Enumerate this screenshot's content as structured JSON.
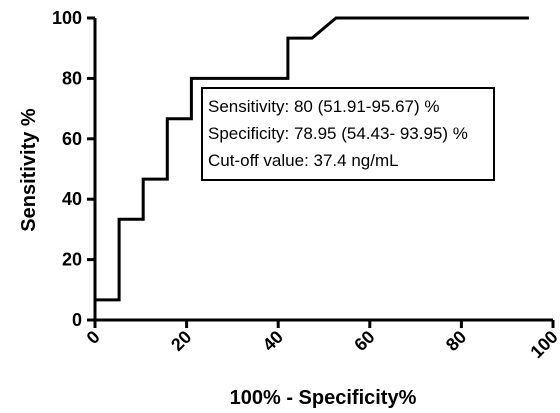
{
  "chart_data": {
    "type": "line",
    "title": "",
    "xlabel": "100% - Specificity%",
    "ylabel": "Sensitivity %",
    "xlim": [
      0,
      100
    ],
    "ylim": [
      0,
      100
    ],
    "x_ticks": [
      "0",
      "20",
      "40",
      "60",
      "80",
      "100"
    ],
    "y_ticks": [
      "0",
      "20",
      "40",
      "60",
      "80",
      "100"
    ],
    "grid": false,
    "series": [
      {
        "style": "step",
        "points": [
          [
            0,
            6.67
          ],
          [
            5.26,
            6.67
          ],
          [
            5.26,
            33.33
          ],
          [
            10.53,
            33.33
          ],
          [
            10.53,
            46.67
          ],
          [
            15.79,
            46.67
          ],
          [
            15.79,
            66.67
          ],
          [
            21.05,
            66.67
          ],
          [
            21.05,
            80
          ],
          [
            42.11,
            80
          ],
          [
            42.11,
            93.33
          ],
          [
            47.37,
            93.33
          ],
          [
            52.63,
            100
          ],
          [
            94.74,
            100
          ]
        ]
      }
    ],
    "annotations": [
      "Sensitivity: 80 (51.91-95.67) %",
      "Specificity: 78.95 (54.43- 93.95) %",
      "Cut-off value: 37.4 ng/mL"
    ]
  }
}
